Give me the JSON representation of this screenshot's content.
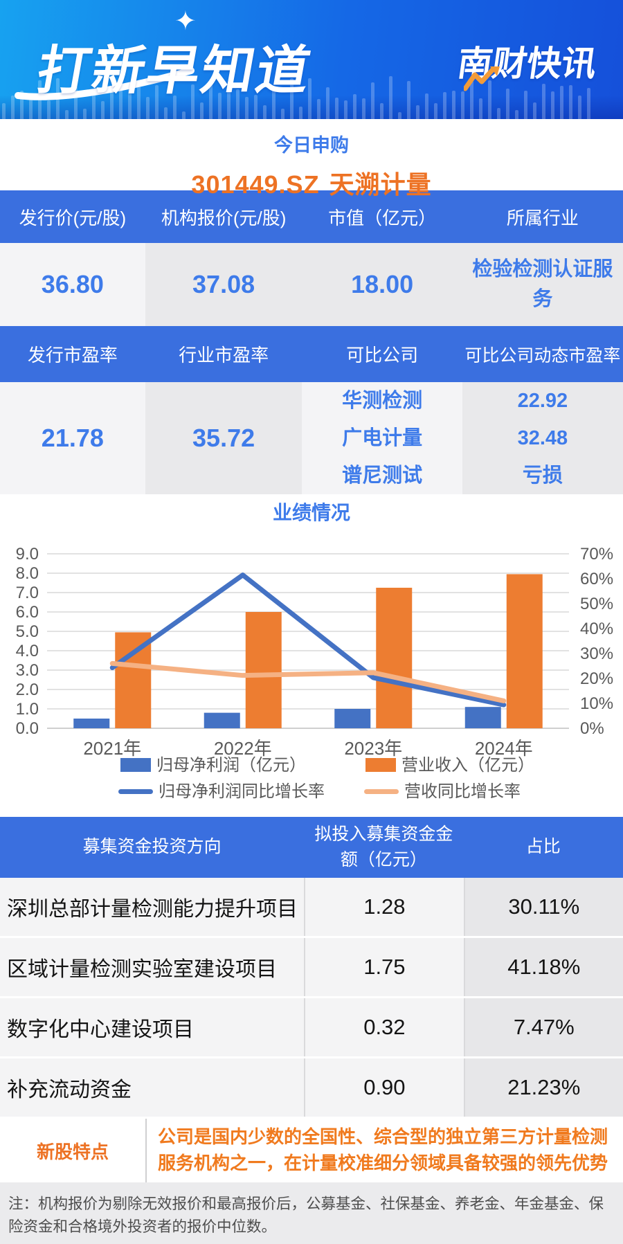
{
  "header": {
    "title": "打新早知道",
    "brand": "南财快讯"
  },
  "subscription": {
    "label": "今日申购",
    "code": "301449.SZ",
    "name": "天溯计量"
  },
  "info_table": {
    "headers": [
      "发行价(元/股)",
      "机构报价(元/股)",
      "市值（亿元）",
      "所属行业"
    ],
    "values": [
      "36.80",
      "37.08",
      "18.00",
      "检验检测认证服务"
    ]
  },
  "pe_table": {
    "headers": [
      "发行市盈率",
      "行业市盈率",
      "可比公司",
      "可比公司动态市盈率"
    ],
    "issue_pe": "21.78",
    "industry_pe": "35.72",
    "comparables": [
      {
        "name": "华测检测",
        "pe": "22.92"
      },
      {
        "name": "广电计量",
        "pe": "32.48"
      },
      {
        "name": "谱尼测试",
        "pe": "亏损"
      }
    ]
  },
  "chart_data": {
    "type": "bar+line",
    "title": "业绩情况",
    "categories": [
      "2021年",
      "2022年",
      "2023年",
      "2024年"
    ],
    "series": [
      {
        "name": "归母净利润（亿元）",
        "type": "bar",
        "axis": "left",
        "color": "#4472C4",
        "values": [
          0.5,
          0.8,
          1.0,
          1.1
        ]
      },
      {
        "name": "营业收入（亿元）",
        "type": "bar",
        "axis": "left",
        "color": "#ED7D31",
        "values": [
          4.95,
          6.0,
          7.25,
          7.95
        ]
      },
      {
        "name": "归母净利润同比增长率",
        "type": "line",
        "axis": "right",
        "color": "#4472C4",
        "values": [
          24.3,
          61.5,
          20.3,
          9.4
        ]
      },
      {
        "name": "营收同比增长率",
        "type": "line",
        "axis": "right",
        "color": "#F5B183",
        "values": [
          26.0,
          21.2,
          22.3,
          11.0
        ]
      }
    ],
    "left_axis": {
      "min": 0,
      "max": 9,
      "step": 1,
      "decimals": 1
    },
    "right_axis": {
      "min": 0,
      "max": 70,
      "step": 10,
      "suffix": "%"
    },
    "grid": true,
    "legend_position": "bottom"
  },
  "fund_table": {
    "headers": [
      "募集资金投资方向",
      "拟投入募集资金金额（亿元）",
      "占比"
    ],
    "rows": [
      {
        "direction": "深圳总部计量检测能力提升项目",
        "amount": "1.28",
        "ratio": "30.11%"
      },
      {
        "direction": "区域计量检测实验室建设项目",
        "amount": "1.75",
        "ratio": "41.18%"
      },
      {
        "direction": "数字化中心建设项目",
        "amount": "0.32",
        "ratio": "7.47%"
      },
      {
        "direction": "补充流动资金",
        "amount": "0.90",
        "ratio": "21.23%"
      }
    ]
  },
  "features": {
    "label": "新股特点",
    "text": "公司是国内少数的全国性、综合型的独立第三方计量检测服务机构之一，在计量校准细分领域具备较强的领先优势"
  },
  "footnote": "注：机构报价为剔除无效报价和最高报价后，公募基金、社保基金、养老金、年金基金、保险资金和合格境外投资者的报价中位数。",
  "colors": {
    "header_gradient_start": "#17A2F0",
    "header_gradient_end": "#1550DA",
    "table_header_blue": "#3A6FDF",
    "value_blue": "#3E7BEA",
    "accent_orange": "#ED7224",
    "bar_blue": "#4472C4",
    "bar_orange": "#ED7D31",
    "line_orange": "#F5B183"
  }
}
